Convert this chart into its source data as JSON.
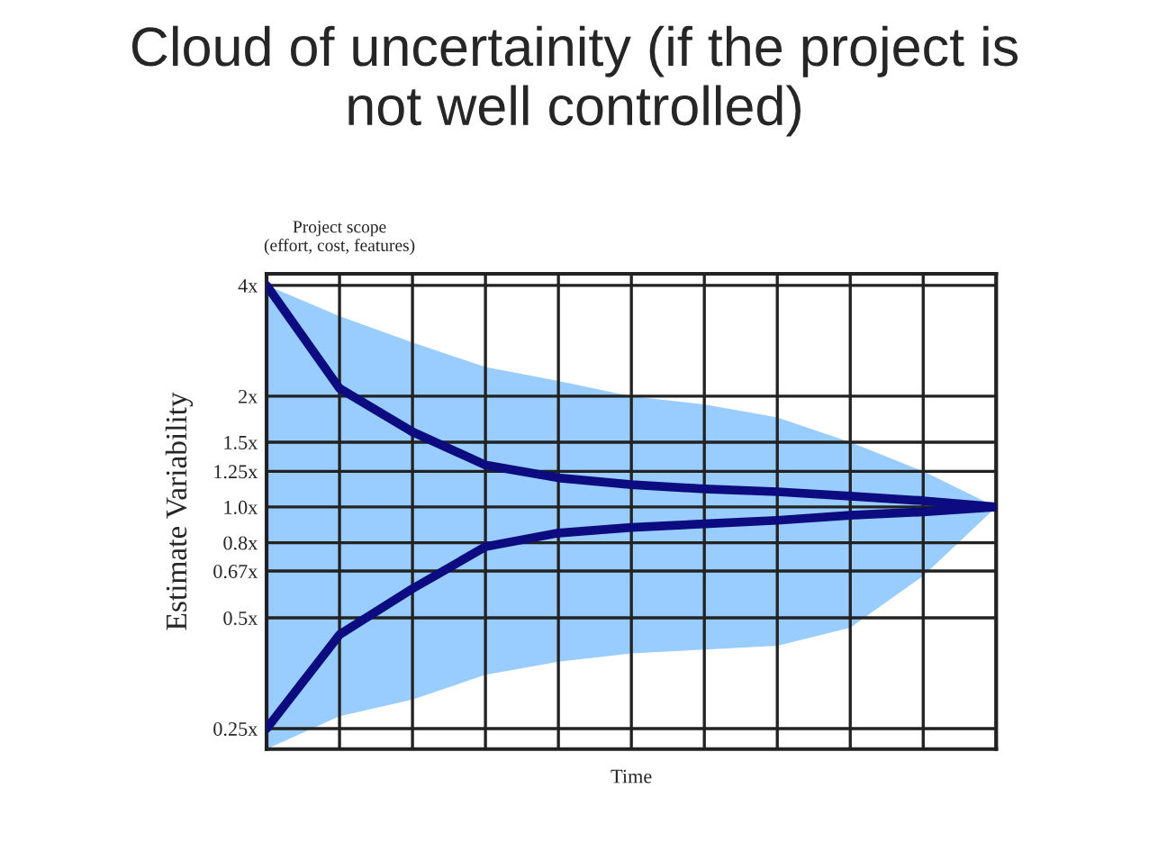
{
  "chart_data": {
    "type": "line",
    "title": "Cloud of uncertainity (if the project is\nnot well controlled)",
    "xlabel": "Time",
    "ylabel": "Estimate Variability",
    "annotations": [
      "Project scope\n(effort, cost, features)"
    ],
    "categories": [
      null,
      null,
      null,
      null,
      null,
      null,
      null,
      null,
      null,
      null,
      null
    ],
    "series": [
      {
        "type": "area",
        "color": "#99ccff",
        "upper": [
          4,
          3.3,
          2.8,
          2.4,
          2.2,
          2.0,
          1.9,
          1.75,
          1.5,
          1.25,
          1.0
        ],
        "values": [
          null,
          null,
          null,
          null,
          null,
          null,
          null,
          null,
          null,
          null,
          null
        ],
        "lower": [
          0.22,
          0.27,
          0.3,
          0.35,
          0.38,
          0.4,
          0.41,
          0.42,
          0.47,
          0.65,
          1.0
        ]
      },
      {
        "color": "#0c0c80",
        "values": [
          4,
          2.1,
          1.6,
          1.3,
          1.2,
          1.15,
          1.12,
          1.1,
          1.07,
          1.04,
          1.0
        ]
      },
      {
        "color": "#0c0c80",
        "values": [
          0.25,
          0.45,
          0.6,
          0.78,
          0.85,
          0.88,
          0.9,
          0.92,
          0.95,
          0.97,
          1.0
        ]
      }
    ],
    "log": "y",
    "ylim": [
      0.22,
      4.3
    ],
    "yticks": [
      {
        "value": 4,
        "label": "4x"
      },
      {
        "value": 2,
        "label": "2x"
      },
      {
        "value": 1.5,
        "label": "1.5x"
      },
      {
        "value": 1.25,
        "label": "1.25x"
      },
      {
        "value": 1.0,
        "label": "1.0x"
      },
      {
        "value": 0.8,
        "label": "0.8x"
      },
      {
        "value": 0.67,
        "label": "0.67x"
      },
      {
        "value": 0.5,
        "label": "0.5x"
      },
      {
        "value": 0.25,
        "label": "0.25x"
      }
    ],
    "tick_labels": "y",
    "grid": true,
    "marker": "none",
    "line_style": "solid"
  }
}
